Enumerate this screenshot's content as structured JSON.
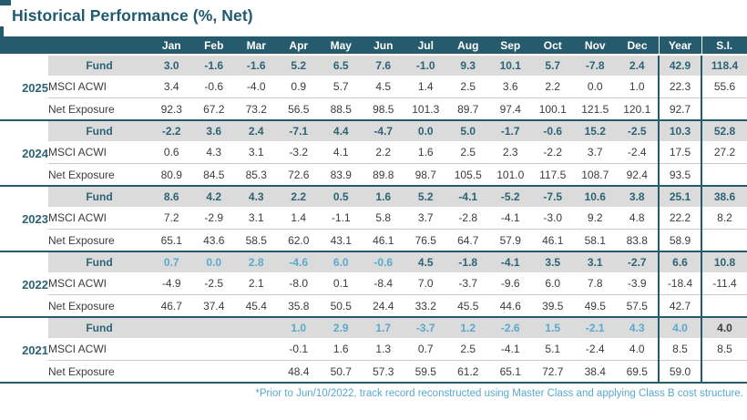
{
  "title": "Historical Performance (%, Net)",
  "footnote": "*Prior to Jun/10/2022, track record reconstructed using Master Class and applying Class B cost structure.",
  "colors": {
    "header_bg": "#265B6D",
    "title_text": "#1F5A6E",
    "fund_value_text": "#2C6375",
    "reconstructed_value_text": "#58A9CE",
    "fund_row_bg": "#DBDBDB",
    "body_text": "#3C3C3C",
    "footnote_text": "#58A9CE"
  },
  "table": {
    "column_headers": [
      "Jan",
      "Feb",
      "Mar",
      "Apr",
      "May",
      "Jun",
      "Jul",
      "Aug",
      "Sep",
      "Oct",
      "Nov",
      "Dec",
      "Year",
      "S.I."
    ],
    "row_labels": {
      "fund": "Fund",
      "benchmark": "MSCI ACWI",
      "exposure": "Net Exposure"
    },
    "years": [
      {
        "year": "2025",
        "fund": [
          "3.0",
          "-1.6",
          "-1.6",
          "5.2",
          "6.5",
          "7.6",
          "-1.0",
          "9.3",
          "10.1",
          "5.7",
          "-7.8",
          "2.4",
          "42.9",
          "118.4"
        ],
        "fund_colors": [
          "teal",
          "teal",
          "teal",
          "teal",
          "teal",
          "teal",
          "teal",
          "teal",
          "teal",
          "teal",
          "teal",
          "teal",
          "teal",
          "teal"
        ],
        "benchmark": [
          "3.4",
          "-0.6",
          "-4.0",
          "0.9",
          "5.7",
          "4.5",
          "1.4",
          "2.5",
          "3.6",
          "2.2",
          "0.0",
          "1.0",
          "22.3",
          "55.6"
        ],
        "exposure": [
          "92.3",
          "67.2",
          "73.2",
          "56.5",
          "88.5",
          "98.5",
          "101.3",
          "89.7",
          "97.4",
          "100.1",
          "121.5",
          "120.1",
          "92.7",
          ""
        ]
      },
      {
        "year": "2024",
        "fund": [
          "-2.2",
          "3.6",
          "2.4",
          "-7.1",
          "4.4",
          "-4.7",
          "0.0",
          "5.0",
          "-1.7",
          "-0.6",
          "15.2",
          "-2.5",
          "10.3",
          "52.8"
        ],
        "fund_colors": [
          "teal",
          "teal",
          "teal",
          "teal",
          "teal",
          "teal",
          "teal",
          "teal",
          "teal",
          "teal",
          "teal",
          "teal",
          "teal",
          "teal"
        ],
        "benchmark": [
          "0.6",
          "4.3",
          "3.1",
          "-3.2",
          "4.1",
          "2.2",
          "1.6",
          "2.5",
          "2.3",
          "-2.2",
          "3.7",
          "-2.4",
          "17.5",
          "27.2"
        ],
        "exposure": [
          "80.9",
          "84.5",
          "85.3",
          "72.6",
          "83.9",
          "89.8",
          "98.7",
          "105.5",
          "101.0",
          "117.5",
          "108.7",
          "92.4",
          "93.5",
          ""
        ]
      },
      {
        "year": "2023",
        "fund": [
          "8.6",
          "4.2",
          "4.3",
          "2.2",
          "0.5",
          "1.6",
          "5.2",
          "-4.1",
          "-5.2",
          "-7.5",
          "10.6",
          "3.8",
          "25.1",
          "38.6"
        ],
        "fund_colors": [
          "teal",
          "teal",
          "teal",
          "teal",
          "teal",
          "teal",
          "teal",
          "teal",
          "teal",
          "teal",
          "teal",
          "teal",
          "teal",
          "teal"
        ],
        "benchmark": [
          "7.2",
          "-2.9",
          "3.1",
          "1.4",
          "-1.1",
          "5.8",
          "3.7",
          "-2.8",
          "-4.1",
          "-3.0",
          "9.2",
          "4.8",
          "22.2",
          "8.2"
        ],
        "exposure": [
          "65.1",
          "43.6",
          "58.5",
          "62.0",
          "43.1",
          "46.1",
          "76.5",
          "64.7",
          "57.9",
          "46.1",
          "58.1",
          "83.8",
          "58.9",
          ""
        ]
      },
      {
        "year": "2022",
        "fund": [
          "0.7",
          "0.0",
          "2.8",
          "-4.6",
          "6.0",
          "-0.6",
          "4.5",
          "-1.8",
          "-4.1",
          "3.5",
          "3.1",
          "-2.7",
          "6.6",
          "10.8"
        ],
        "fund_colors": [
          "light",
          "light",
          "light",
          "light",
          "light",
          "light",
          "teal",
          "teal",
          "teal",
          "teal",
          "teal",
          "teal",
          "teal",
          "teal"
        ],
        "benchmark": [
          "-4.9",
          "-2.5",
          "2.1",
          "-8.0",
          "0.1",
          "-8.4",
          "7.0",
          "-3.7",
          "-9.6",
          "6.0",
          "7.8",
          "-3.9",
          "-18.4",
          "-11.4"
        ],
        "exposure": [
          "46.7",
          "37.4",
          "45.4",
          "35.8",
          "50.5",
          "24.4",
          "33.2",
          "45.5",
          "44.6",
          "39.5",
          "49.5",
          "57.5",
          "42.7",
          ""
        ]
      },
      {
        "year": "2021",
        "fund": [
          "",
          "",
          "",
          "1.0",
          "2.9",
          "1.7",
          "-3.7",
          "1.2",
          "-2.6",
          "1.5",
          "-2.1",
          "4.3",
          "4.0",
          "4.0"
        ],
        "fund_colors": [
          "teal",
          "teal",
          "teal",
          "light",
          "light",
          "light",
          "light",
          "light",
          "light",
          "light",
          "light",
          "light",
          "light",
          "dark"
        ],
        "benchmark": [
          "",
          "",
          "",
          "-0.1",
          "1.6",
          "1.3",
          "0.7",
          "2.5",
          "-4.1",
          "5.1",
          "-2.4",
          "4.0",
          "8.5",
          "8.5"
        ],
        "exposure": [
          "",
          "",
          "",
          "48.4",
          "50.7",
          "57.3",
          "59.5",
          "61.2",
          "65.1",
          "72.7",
          "38.4",
          "69.5",
          "59.0",
          ""
        ]
      }
    ]
  }
}
